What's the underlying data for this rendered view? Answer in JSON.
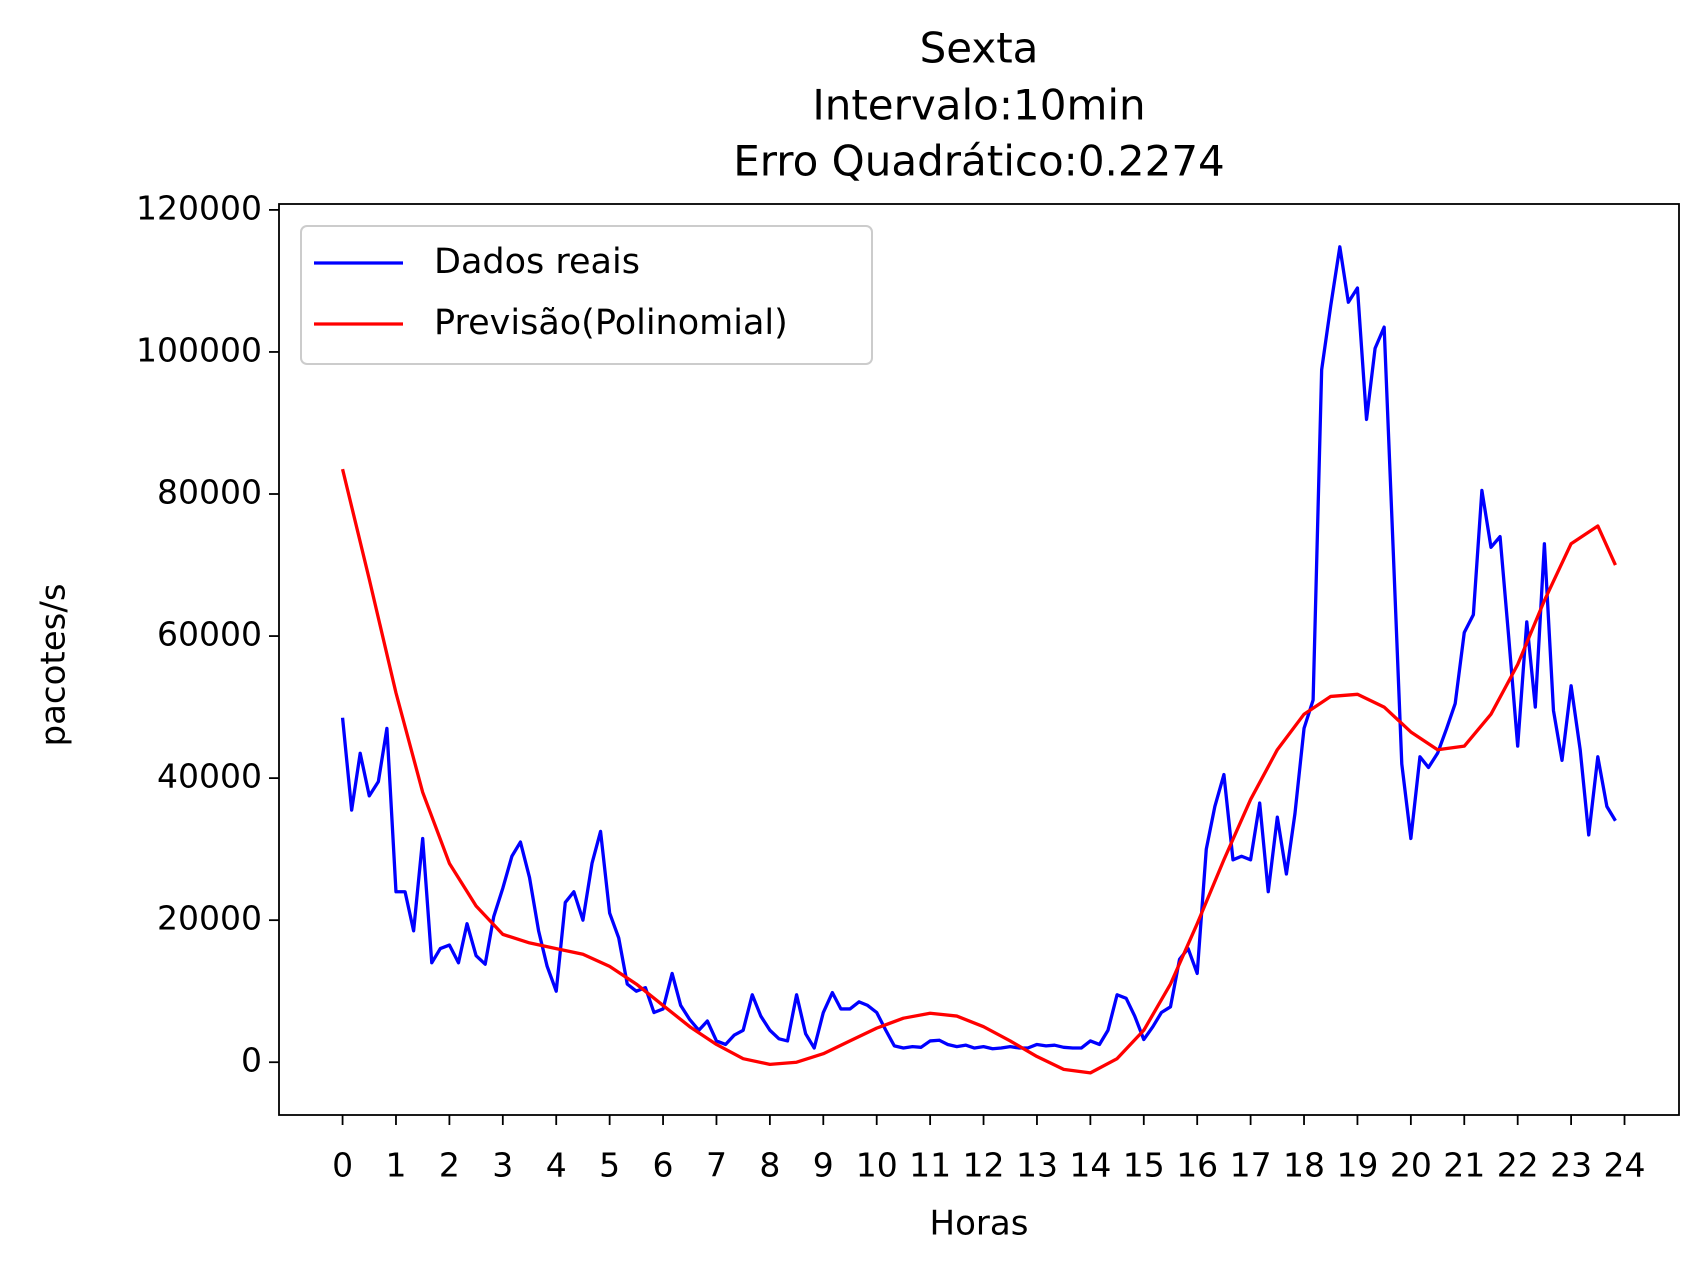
{
  "chart_data": {
    "type": "line",
    "title": [
      "Sexta",
      "Intervalo:10min",
      "Erro Quadrático:0.2274"
    ],
    "xlabel": "Horas",
    "ylabel": "pacotes/s",
    "xlim": [
      -1.19,
      25.02
    ],
    "ylim": [
      -7430,
      120830
    ],
    "xticks": [
      0,
      1,
      2,
      3,
      4,
      5,
      6,
      7,
      8,
      9,
      10,
      11,
      12,
      13,
      14,
      15,
      16,
      17,
      18,
      19,
      20,
      21,
      22,
      23,
      24
    ],
    "yticks": [
      0,
      20000,
      40000,
      60000,
      80000,
      100000,
      120000
    ],
    "legend": "upper left",
    "series": [
      {
        "name": "Dados reais",
        "color": "#0000ff",
        "x": [
          0,
          0.17,
          0.33,
          0.5,
          0.67,
          0.83,
          1,
          1.17,
          1.33,
          1.5,
          1.67,
          1.83,
          2,
          2.17,
          2.33,
          2.5,
          2.67,
          2.83,
          3,
          3.17,
          3.33,
          3.5,
          3.67,
          3.83,
          4,
          4.17,
          4.33,
          4.5,
          4.67,
          4.83,
          5,
          5.17,
          5.33,
          5.5,
          5.67,
          5.83,
          6,
          6.17,
          6.33,
          6.5,
          6.67,
          6.83,
          7,
          7.17,
          7.33,
          7.5,
          7.67,
          7.83,
          8,
          8.17,
          8.33,
          8.5,
          8.67,
          8.83,
          9,
          9.17,
          9.33,
          9.5,
          9.67,
          9.83,
          10,
          10.17,
          10.33,
          10.5,
          10.67,
          10.83,
          11,
          11.17,
          11.33,
          11.5,
          11.67,
          11.83,
          12,
          12.17,
          12.33,
          12.5,
          12.67,
          12.83,
          13,
          13.17,
          13.33,
          13.5,
          13.67,
          13.83,
          14,
          14.17,
          14.33,
          14.5,
          14.67,
          14.83,
          15,
          15.17,
          15.33,
          15.5,
          15.67,
          15.83,
          16,
          16.17,
          16.33,
          16.5,
          16.67,
          16.83,
          17,
          17.17,
          17.33,
          17.5,
          17.67,
          17.83,
          18,
          18.17,
          18.33,
          18.5,
          18.67,
          18.83,
          19,
          19.17,
          19.33,
          19.5,
          19.67,
          19.83,
          20,
          20.17,
          20.33,
          20.5,
          20.67,
          20.83,
          21,
          21.17,
          21.33,
          21.5,
          21.67,
          21.83,
          22,
          22.17,
          22.33,
          22.5,
          22.67,
          22.83,
          23,
          23.17,
          23.33,
          23.5,
          23.67,
          23.83
        ],
        "values": [
          48500,
          35500,
          43500,
          37500,
          39500,
          47000,
          24000,
          24000,
          18500,
          31500,
          14000,
          16000,
          16500,
          14000,
          19500,
          15000,
          13800,
          20500,
          24500,
          29000,
          31000,
          26000,
          18500,
          13500,
          10000,
          22500,
          24000,
          20000,
          28000,
          32500,
          21000,
          17500,
          11000,
          10000,
          10500,
          7000,
          7500,
          12500,
          8000,
          6000,
          4500,
          5800,
          3000,
          2500,
          3800,
          4500,
          9500,
          6500,
          4500,
          3300,
          3000,
          9500,
          4000,
          2000,
          7000,
          9800,
          7500,
          7500,
          8500,
          8000,
          7000,
          4500,
          2300,
          2000,
          2200,
          2100,
          3000,
          3100,
          2500,
          2200,
          2400,
          2000,
          2200,
          1900,
          2000,
          2200,
          2000,
          2000,
          2500,
          2300,
          2400,
          2100,
          2000,
          2000,
          3000,
          2500,
          4500,
          9500,
          9000,
          6500,
          3200,
          5000,
          7000,
          7800,
          14500,
          16000,
          12500,
          30000,
          36000,
          40500,
          28500,
          29000,
          28500,
          36500,
          24000,
          34500,
          26500,
          35000,
          47000,
          51000,
          97500,
          106500,
          114800,
          107000,
          109000,
          90500,
          100500,
          103500,
          72000,
          42000,
          31500,
          43000,
          41500,
          43500,
          47000,
          50500,
          60500,
          63000,
          80500,
          72500,
          74000,
          60000,
          44500,
          62000,
          50000,
          73000,
          49500,
          42500,
          53000,
          44000,
          32000,
          43000,
          36000,
          34000
        ]
      },
      {
        "name": "Previsão(Polinomial)",
        "color": "#ff0000",
        "x": [
          0,
          0.5,
          1,
          1.5,
          2,
          2.5,
          3,
          3.5,
          4,
          4.5,
          5,
          5.5,
          6,
          6.5,
          7,
          7.5,
          8,
          8.5,
          9,
          9.5,
          10,
          10.5,
          11,
          11.5,
          12,
          12.5,
          13,
          13.5,
          14,
          14.5,
          15,
          15.5,
          16,
          16.5,
          17,
          17.5,
          18,
          18.5,
          19,
          19.5,
          20,
          20.5,
          21,
          21.5,
          22,
          22.5,
          23,
          23.5,
          23.83
        ],
        "values": [
          83500,
          68000,
          52000,
          38000,
          28000,
          22000,
          18000,
          16800,
          16000,
          15200,
          13500,
          11000,
          8000,
          5000,
          2500,
          500,
          -300,
          0,
          1200,
          3000,
          4800,
          6200,
          6900,
          6500,
          5000,
          3000,
          800,
          -1000,
          -1500,
          500,
          4500,
          11000,
          19500,
          28500,
          37000,
          44000,
          49000,
          51500,
          51800,
          50000,
          46500,
          44000,
          44500,
          49000,
          56000,
          65000,
          73000,
          75500,
          70000
        ]
      }
    ]
  }
}
